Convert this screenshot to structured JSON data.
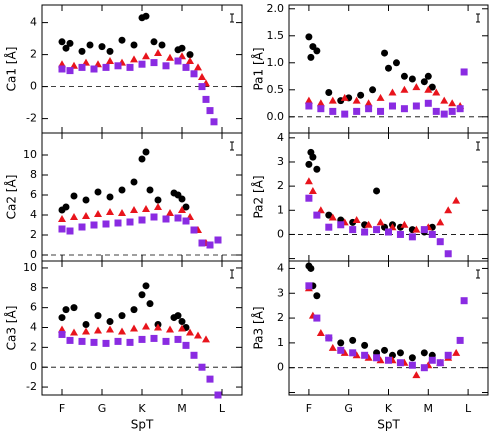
{
  "chart_data": [
    {
      "type": "scatter",
      "ylabel": "Ca1 [Å]",
      "xlim": [
        -0.5,
        4.5
      ],
      "xticks": [
        0,
        1,
        2,
        3,
        4
      ],
      "ylim": [
        -2.9,
        5.1
      ],
      "yticks": [
        -2,
        0,
        2,
        4
      ],
      "hline": 0,
      "series": [
        {
          "color": "#000000",
          "marker": "circle",
          "x": [
            0.0,
            0.1,
            0.2,
            0.5,
            0.7,
            1.0,
            1.2,
            1.5,
            1.8,
            2.0,
            2.1,
            2.3,
            2.5,
            2.9,
            3.0,
            3.2
          ],
          "values": [
            2.8,
            2.4,
            2.7,
            2.2,
            2.6,
            2.5,
            2.2,
            2.9,
            2.6,
            4.3,
            4.4,
            2.8,
            2.6,
            2.3,
            2.4,
            2.0
          ]
        },
        {
          "color": "#e8141c",
          "marker": "triangle",
          "x": [
            0.0,
            0.3,
            0.6,
            0.9,
            1.2,
            1.5,
            1.8,
            2.1,
            2.4,
            2.7,
            3.0,
            3.2,
            3.4,
            3.5,
            3.6
          ],
          "values": [
            1.4,
            1.3,
            1.5,
            1.4,
            1.6,
            1.5,
            1.7,
            1.9,
            2.1,
            1.8,
            1.9,
            1.6,
            1.2,
            0.6,
            0.2
          ]
        },
        {
          "color": "#8a2be2",
          "marker": "square",
          "x": [
            0.0,
            0.2,
            0.5,
            0.8,
            1.1,
            1.4,
            1.7,
            2.0,
            2.3,
            2.6,
            2.9,
            3.1,
            3.3,
            3.5,
            3.6,
            3.7,
            3.8
          ],
          "values": [
            1.1,
            1.0,
            1.2,
            1.1,
            1.2,
            1.3,
            1.2,
            1.4,
            1.5,
            1.3,
            1.6,
            1.2,
            0.8,
            0.0,
            -0.8,
            -1.5,
            -2.2
          ]
        }
      ]
    },
    {
      "type": "scatter",
      "ylabel": "Pa1 [Å]",
      "xlim": [
        -0.5,
        4.5
      ],
      "xticks": [
        0,
        1,
        2,
        3,
        4
      ],
      "ylim": [
        -0.3,
        2.07
      ],
      "yticks": [
        {
          "value": 0,
          "label": "0.0"
        },
        0.5,
        {
          "value": 1,
          "label": "1.0"
        },
        1.5,
        {
          "value": 2,
          "label": "2.0"
        }
      ],
      "hline": 0,
      "series": [
        {
          "color": "#000000",
          "marker": "circle",
          "x": [
            0.0,
            0.05,
            0.1,
            0.2,
            0.5,
            0.8,
            1.0,
            1.3,
            1.6,
            1.9,
            2.0,
            2.2,
            2.4,
            2.6,
            2.9,
            3.0,
            3.1
          ],
          "values": [
            1.48,
            1.1,
            1.3,
            1.22,
            0.45,
            0.3,
            0.35,
            0.4,
            0.5,
            1.18,
            0.9,
            1.0,
            0.75,
            0.7,
            0.65,
            0.75,
            0.55
          ]
        },
        {
          "color": "#e8141c",
          "marker": "triangle",
          "x": [
            0.0,
            0.3,
            0.6,
            0.9,
            1.2,
            1.5,
            1.8,
            2.1,
            2.4,
            2.7,
            3.0,
            3.2,
            3.4,
            3.6,
            3.8
          ],
          "values": [
            0.3,
            0.25,
            0.3,
            0.35,
            0.3,
            0.25,
            0.35,
            0.45,
            0.5,
            0.55,
            0.5,
            0.45,
            0.3,
            0.25,
            0.2
          ]
        },
        {
          "color": "#8a2be2",
          "marker": "square",
          "x": [
            0.0,
            0.3,
            0.6,
            0.9,
            1.2,
            1.5,
            1.8,
            2.1,
            2.4,
            2.7,
            3.0,
            3.2,
            3.4,
            3.6,
            3.8,
            3.9
          ],
          "values": [
            0.2,
            0.15,
            0.1,
            0.05,
            0.1,
            0.15,
            0.1,
            0.2,
            0.15,
            0.2,
            0.25,
            0.1,
            0.05,
            0.1,
            0.15,
            0.83
          ]
        }
      ]
    },
    {
      "type": "scatter",
      "ylabel": "Ca2 [Å]",
      "xlim": [
        -0.5,
        4.5
      ],
      "xticks": [
        0,
        1,
        2,
        3,
        4
      ],
      "ylim": [
        -0.6,
        12.2
      ],
      "yticks": [
        0,
        2,
        4,
        6,
        8,
        10
      ],
      "hline": 0,
      "series": [
        {
          "color": "#000000",
          "marker": "circle",
          "x": [
            0.0,
            0.1,
            0.3,
            0.6,
            0.9,
            1.2,
            1.5,
            1.8,
            2.0,
            2.1,
            2.2,
            2.4,
            2.8,
            2.9,
            3.0,
            3.1
          ],
          "values": [
            4.5,
            4.8,
            5.9,
            5.5,
            6.3,
            5.8,
            6.5,
            7.3,
            9.6,
            10.3,
            6.5,
            5.5,
            6.2,
            6.0,
            5.6,
            4.8
          ]
        },
        {
          "color": "#e8141c",
          "marker": "triangle",
          "x": [
            0.0,
            0.3,
            0.6,
            0.9,
            1.2,
            1.5,
            1.8,
            2.1,
            2.4,
            2.7,
            3.0,
            3.2,
            3.4,
            3.6
          ],
          "values": [
            3.6,
            3.8,
            3.9,
            4.1,
            4.3,
            4.2,
            4.5,
            4.6,
            4.8,
            4.2,
            4.5,
            3.8,
            2.5,
            1.2
          ]
        },
        {
          "color": "#8a2be2",
          "marker": "square",
          "x": [
            0.0,
            0.2,
            0.5,
            0.8,
            1.1,
            1.4,
            1.7,
            2.0,
            2.3,
            2.6,
            2.9,
            3.1,
            3.3,
            3.5,
            3.7,
            3.9
          ],
          "values": [
            2.6,
            2.4,
            2.8,
            3.0,
            3.1,
            3.2,
            3.3,
            3.5,
            3.8,
            3.6,
            3.7,
            3.4,
            2.5,
            1.2,
            1.0,
            1.5
          ]
        }
      ]
    },
    {
      "type": "scatter",
      "ylabel": "Pa2 [Å]",
      "xlim": [
        -0.5,
        4.5
      ],
      "xticks": [
        0,
        1,
        2,
        3,
        4
      ],
      "ylim": [
        -1.1,
        4.2
      ],
      "yticks": [
        -1,
        0,
        1,
        2,
        3,
        4
      ],
      "hline": 0,
      "series": [
        {
          "color": "#000000",
          "marker": "circle",
          "x": [
            0.0,
            0.05,
            0.1,
            0.2,
            0.5,
            0.8,
            1.1,
            1.4,
            1.7,
            1.9,
            2.1,
            2.3,
            2.6,
            2.9,
            3.1
          ],
          "values": [
            2.9,
            3.4,
            3.2,
            2.7,
            0.8,
            0.6,
            0.5,
            0.4,
            1.8,
            0.3,
            0.4,
            0.3,
            0.2,
            0.1,
            0.3
          ]
        },
        {
          "color": "#e8141c",
          "marker": "triangle",
          "x": [
            0.0,
            0.1,
            0.3,
            0.6,
            0.9,
            1.2,
            1.5,
            1.8,
            2.1,
            2.4,
            2.7,
            3.0,
            3.3,
            3.5,
            3.7
          ],
          "values": [
            2.2,
            1.8,
            1.0,
            0.7,
            0.5,
            0.6,
            0.4,
            0.5,
            0.3,
            0.4,
            0.2,
            0.3,
            0.5,
            1.0,
            1.4
          ]
        },
        {
          "color": "#8a2be2",
          "marker": "square",
          "x": [
            0.0,
            0.2,
            0.5,
            0.8,
            1.1,
            1.4,
            1.7,
            2.0,
            2.3,
            2.6,
            2.9,
            3.1,
            3.3,
            3.5
          ],
          "values": [
            1.5,
            0.8,
            0.3,
            0.4,
            0.2,
            0.1,
            0.2,
            0.1,
            0.0,
            -0.1,
            0.2,
            0.0,
            -0.3,
            -0.8
          ]
        }
      ]
    },
    {
      "type": "scatter",
      "ylabel": "Ca3 [Å]",
      "xlabel": "SpT",
      "xlim": [
        -0.5,
        4.5
      ],
      "xticks": [
        {
          "value": 0,
          "label": "F"
        },
        {
          "value": 1,
          "label": "G"
        },
        {
          "value": 2,
          "label": "K"
        },
        {
          "value": 3,
          "label": "M"
        },
        {
          "value": 4,
          "label": "L"
        }
      ],
      "ylim": [
        -2.8,
        10.7
      ],
      "yticks": [
        -2,
        0,
        2,
        4,
        6,
        8,
        10
      ],
      "hline": 0,
      "series": [
        {
          "color": "#000000",
          "marker": "circle",
          "x": [
            0.0,
            0.1,
            0.3,
            0.6,
            0.9,
            1.2,
            1.5,
            1.8,
            2.0,
            2.1,
            2.2,
            2.4,
            2.8,
            2.9,
            3.0,
            3.1
          ],
          "values": [
            5.0,
            5.8,
            6.0,
            4.3,
            5.2,
            4.6,
            5.2,
            5.8,
            7.3,
            8.2,
            6.4,
            4.3,
            5.0,
            5.2,
            4.6,
            4.0
          ]
        },
        {
          "color": "#e8141c",
          "marker": "triangle",
          "x": [
            0.0,
            0.3,
            0.6,
            0.9,
            1.2,
            1.5,
            1.8,
            2.1,
            2.4,
            2.7,
            3.0,
            3.2,
            3.4,
            3.6
          ],
          "values": [
            3.8,
            3.5,
            3.6,
            3.7,
            3.8,
            3.6,
            3.9,
            4.1,
            4.0,
            3.8,
            3.9,
            3.5,
            3.2,
            2.8
          ]
        },
        {
          "color": "#8a2be2",
          "marker": "square",
          "x": [
            0.0,
            0.2,
            0.5,
            0.8,
            1.1,
            1.4,
            1.7,
            2.0,
            2.3,
            2.6,
            2.9,
            3.1,
            3.3,
            3.5,
            3.7,
            3.9
          ],
          "values": [
            3.3,
            2.7,
            2.6,
            2.5,
            2.4,
            2.6,
            2.5,
            2.8,
            2.9,
            2.6,
            2.8,
            2.2,
            1.2,
            0.0,
            -1.2,
            -2.8
          ]
        }
      ]
    },
    {
      "type": "scatter",
      "ylabel": "Pa3 [Å]",
      "xlabel": "SpT",
      "xlim": [
        -0.5,
        4.5
      ],
      "xticks": [
        {
          "value": 0,
          "label": "F"
        },
        {
          "value": 1,
          "label": "G"
        },
        {
          "value": 2,
          "label": "K"
        },
        {
          "value": 3,
          "label": "M"
        },
        {
          "value": 4,
          "label": "L"
        }
      ],
      "ylim": [
        -1.1,
        4.3
      ],
      "yticks": [
        -1,
        0,
        1,
        2,
        3,
        4
      ],
      "hline": 0,
      "series": [
        {
          "color": "#000000",
          "marker": "circle",
          "x": [
            0.0,
            0.05,
            0.1,
            0.2,
            0.5,
            0.8,
            1.1,
            1.4,
            1.7,
            1.9,
            2.1,
            2.3,
            2.6,
            2.9,
            3.1
          ],
          "values": [
            4.1,
            4.0,
            3.3,
            2.9,
            1.2,
            1.0,
            1.1,
            0.9,
            0.6,
            0.7,
            0.5,
            0.6,
            0.4,
            0.6,
            0.5
          ]
        },
        {
          "color": "#e8141c",
          "marker": "triangle",
          "x": [
            0.0,
            0.1,
            0.3,
            0.6,
            0.9,
            1.2,
            1.5,
            1.8,
            2.1,
            2.4,
            2.7,
            3.0,
            3.3,
            3.5,
            3.7
          ],
          "values": [
            3.2,
            2.1,
            1.4,
            0.8,
            0.6,
            0.5,
            0.4,
            0.3,
            0.3,
            0.2,
            -0.3,
            0.1,
            0.2,
            0.4,
            0.6
          ]
        },
        {
          "color": "#8a2be2",
          "marker": "square",
          "x": [
            0.0,
            0.2,
            0.5,
            0.8,
            1.1,
            1.4,
            1.7,
            2.0,
            2.3,
            2.6,
            2.9,
            3.1,
            3.3,
            3.5,
            3.8,
            3.9
          ],
          "values": [
            3.3,
            2.0,
            1.2,
            0.7,
            0.6,
            0.5,
            0.4,
            0.3,
            0.2,
            0.1,
            0.0,
            0.3,
            0.2,
            0.5,
            1.1,
            2.7
          ]
        }
      ]
    }
  ]
}
